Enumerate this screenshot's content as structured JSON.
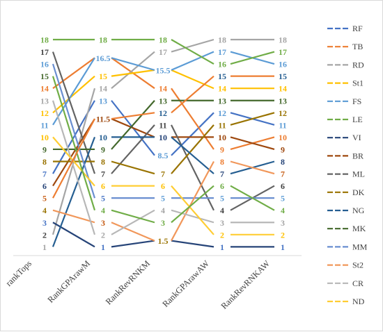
{
  "chart_data": {
    "type": "line",
    "categories": [
      "rankTops",
      "RankGPArawM",
      "RankRevRNKM",
      "RankGPArawAW",
      "RankRevRNKAW"
    ],
    "ylim": [
      0.5,
      18.5
    ],
    "grid": false,
    "legend_position": "right",
    "series": [
      {
        "name": "RF",
        "color": "#4472C4",
        "values": [
          7,
          13,
          8.5,
          12,
          11
        ]
      },
      {
        "name": "TB",
        "color": "#ED7D31",
        "values": [
          14,
          16.5,
          14,
          9,
          10
        ]
      },
      {
        "name": "RD",
        "color": "#A5A5A5",
        "values": [
          2,
          14,
          17,
          18,
          18
        ]
      },
      {
        "name": "St1",
        "color": "#FFC000",
        "values": [
          12,
          15,
          15.5,
          14,
          14
        ]
      },
      {
        "name": "FS",
        "color": "#5B9BD5",
        "values": [
          11,
          16.5,
          15.5,
          17,
          16
        ]
      },
      {
        "name": "LE",
        "color": "#70AD47",
        "values": [
          18,
          18,
          18,
          16,
          17
        ]
      },
      {
        "name": "VI",
        "color": "#264478",
        "values": [
          3,
          1,
          1.5,
          1,
          1
        ]
      },
      {
        "name": "BR",
        "color": "#9E480E",
        "values": [
          6,
          11.5,
          10,
          10,
          9
        ]
      },
      {
        "name": "ML",
        "color": "#636363",
        "values": [
          17,
          7,
          11,
          4,
          6
        ]
      },
      {
        "name": "DK",
        "color": "#997300",
        "values": [
          8,
          8,
          7,
          11,
          12
        ]
      },
      {
        "name": "NG",
        "color": "#255E91",
        "values": [
          1,
          10,
          10,
          7,
          8
        ]
      },
      {
        "name": "MK",
        "color": "#43682B",
        "values": [
          9,
          9,
          13,
          13,
          13
        ]
      },
      {
        "name": "MM",
        "color": "#698ED0",
        "values": [
          16,
          5,
          5,
          5,
          5
        ]
      },
      {
        "name": "St2",
        "color": "#F1975A",
        "values": [
          4,
          3,
          1.5,
          8,
          7
        ]
      },
      {
        "name": "CR",
        "color": "#B7B7B7",
        "values": [
          13,
          2,
          4,
          3,
          3
        ]
      },
      {
        "name": "ND",
        "color": "#FFCD33",
        "values": [
          10,
          6,
          6,
          2,
          2
        ]
      },
      {
        "name": "",
        "color": "#70AD47",
        "values": [
          15,
          4,
          3,
          6,
          4
        ]
      },
      {
        "name": "",
        "color": "#ED7D31",
        "values": [
          5,
          11.5,
          12,
          15,
          15
        ]
      }
    ],
    "rank_labels": {
      "rankTops": [
        {
          "text": "18",
          "value": 18,
          "color": "#70AD47"
        },
        {
          "text": "17",
          "value": 17,
          "color": "#404040"
        },
        {
          "text": "16",
          "value": 16,
          "color": "#5B9BD5"
        },
        {
          "text": "15",
          "value": 15,
          "color": "#43682B"
        },
        {
          "text": "14",
          "value": 14,
          "color": "#ED7D31"
        },
        {
          "text": "13",
          "value": 13,
          "color": "#A5A5A5"
        },
        {
          "text": "12",
          "value": 12,
          "color": "#FFC000"
        },
        {
          "text": "11",
          "value": 11,
          "color": "#5B9BD5"
        },
        {
          "text": "10",
          "value": 10,
          "color": "#FFC000"
        },
        {
          "text": "9",
          "value": 9,
          "color": "#43682B"
        },
        {
          "text": "8",
          "value": 8,
          "color": "#997300"
        },
        {
          "text": "7",
          "value": 7,
          "color": "#4472C4"
        },
        {
          "text": "6",
          "value": 6,
          "color": "#264478"
        },
        {
          "text": "5",
          "value": 5,
          "color": "#C55A11"
        },
        {
          "text": "4",
          "value": 4,
          "color": "#997300"
        },
        {
          "text": "3",
          "value": 3,
          "color": "#4472C4"
        },
        {
          "text": "2",
          "value": 2,
          "color": "#404040"
        },
        {
          "text": "1",
          "value": 1,
          "color": "#A5A5A5"
        }
      ],
      "RankGPArawM": [
        {
          "text": "18",
          "value": 18,
          "color": "#70AD47"
        },
        {
          "text": "16.5",
          "value": 16.5,
          "color": "#5B9BD5"
        },
        {
          "text": "15",
          "value": 15,
          "color": "#FFC000"
        },
        {
          "text": "14",
          "value": 14,
          "color": "#A5A5A5"
        },
        {
          "text": "13",
          "value": 13,
          "color": "#5B9BD5"
        },
        {
          "text": "11.5",
          "value": 11.5,
          "color": "#9E480E"
        },
        {
          "text": "10",
          "value": 10,
          "color": "#255E91"
        },
        {
          "text": "9",
          "value": 9,
          "color": "#43682B"
        },
        {
          "text": "8",
          "value": 8,
          "color": "#997300"
        },
        {
          "text": "7",
          "value": 7,
          "color": "#404040"
        },
        {
          "text": "6",
          "value": 6,
          "color": "#FFC000"
        },
        {
          "text": "5",
          "value": 5,
          "color": "#4472C4"
        },
        {
          "text": "4",
          "value": 4,
          "color": "#70AD47"
        },
        {
          "text": "3",
          "value": 3,
          "color": "#C55A11"
        },
        {
          "text": "2",
          "value": 2,
          "color": "#A5A5A5"
        },
        {
          "text": "1",
          "value": 1,
          "color": "#4472C4"
        }
      ],
      "RankRevRNKM": [
        {
          "text": "18",
          "value": 18,
          "color": "#70AD47"
        },
        {
          "text": "17",
          "value": 17,
          "color": "#A5A5A5"
        },
        {
          "text": "15.5",
          "value": 15.5,
          "color": "#5B9BD5"
        },
        {
          "text": "14",
          "value": 14,
          "color": "#ED7D31"
        },
        {
          "text": "13",
          "value": 13,
          "color": "#43682B"
        },
        {
          "text": "12",
          "value": 12,
          "color": "#255E91"
        },
        {
          "text": "11",
          "value": 11,
          "color": "#404040"
        },
        {
          "text": "10",
          "value": 10,
          "color": "#264478"
        },
        {
          "text": "8.5",
          "value": 8.5,
          "color": "#5B9BD5"
        },
        {
          "text": "7",
          "value": 7,
          "color": "#997300"
        },
        {
          "text": "6",
          "value": 6,
          "color": "#FFC000"
        },
        {
          "text": "5",
          "value": 5,
          "color": "#5B9BD5"
        },
        {
          "text": "4",
          "value": 4,
          "color": "#A5A5A5"
        },
        {
          "text": "3",
          "value": 3,
          "color": "#70AD47"
        },
        {
          "text": "1.5",
          "value": 1.5,
          "color": "#997300"
        }
      ],
      "RankGPArawAW": [
        {
          "text": "18",
          "value": 18,
          "color": "#A5A5A5"
        },
        {
          "text": "17",
          "value": 17,
          "color": "#5B9BD5"
        },
        {
          "text": "16",
          "value": 16,
          "color": "#70AD47"
        },
        {
          "text": "15",
          "value": 15,
          "color": "#255E91"
        },
        {
          "text": "14",
          "value": 14,
          "color": "#FFC000"
        },
        {
          "text": "13",
          "value": 13,
          "color": "#43682B"
        },
        {
          "text": "12",
          "value": 12,
          "color": "#5B9BD5"
        },
        {
          "text": "11",
          "value": 11,
          "color": "#997300"
        },
        {
          "text": "10",
          "value": 10,
          "color": "#9E480E"
        },
        {
          "text": "9",
          "value": 9,
          "color": "#ED7D31"
        },
        {
          "text": "8",
          "value": 8,
          "color": "#ED7D31"
        },
        {
          "text": "7",
          "value": 7,
          "color": "#264478"
        },
        {
          "text": "6",
          "value": 6,
          "color": "#70AD47"
        },
        {
          "text": "5",
          "value": 5,
          "color": "#5B9BD5"
        },
        {
          "text": "4",
          "value": 4,
          "color": "#404040"
        },
        {
          "text": "3",
          "value": 3,
          "color": "#A5A5A5"
        },
        {
          "text": "2",
          "value": 2,
          "color": "#FFC000"
        },
        {
          "text": "1",
          "value": 1,
          "color": "#4472C4"
        }
      ],
      "RankRevRNKAW": [
        {
          "text": "18",
          "value": 18,
          "color": "#A5A5A5"
        },
        {
          "text": "17",
          "value": 17,
          "color": "#70AD47"
        },
        {
          "text": "16",
          "value": 16,
          "color": "#5B9BD5"
        },
        {
          "text": "15",
          "value": 15,
          "color": "#255E91"
        },
        {
          "text": "14",
          "value": 14,
          "color": "#FFC000"
        },
        {
          "text": "13",
          "value": 13,
          "color": "#43682B"
        },
        {
          "text": "12",
          "value": 12,
          "color": "#997300"
        },
        {
          "text": "11",
          "value": 11,
          "color": "#5B9BD5"
        },
        {
          "text": "10",
          "value": 10,
          "color": "#ED7D31"
        },
        {
          "text": "9",
          "value": 9,
          "color": "#9E480E"
        },
        {
          "text": "8",
          "value": 8,
          "color": "#264478"
        },
        {
          "text": "7",
          "value": 7,
          "color": "#C55A11"
        },
        {
          "text": "6",
          "value": 6,
          "color": "#404040"
        },
        {
          "text": "5",
          "value": 5,
          "color": "#5B9BD5"
        },
        {
          "text": "4",
          "value": 4,
          "color": "#70AD47"
        },
        {
          "text": "3",
          "value": 3,
          "color": "#A5A5A5"
        },
        {
          "text": "2",
          "value": 2,
          "color": "#FFC000"
        },
        {
          "text": "1",
          "value": 1,
          "color": "#4472C4"
        }
      ]
    }
  }
}
